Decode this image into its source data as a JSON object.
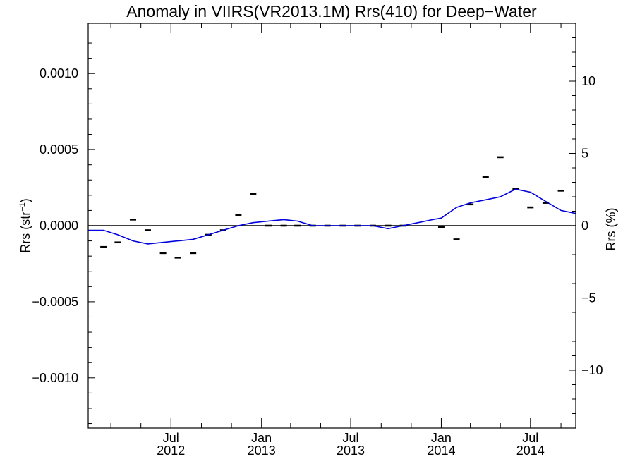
{
  "chart_data": {
    "type": "line",
    "title": "Anomaly in VIIRS(VR2013.1M) Rrs(410) for Deep−Water",
    "ylabel_left": {
      "base": "Rrs (str",
      "sup": "−1",
      "end": ")"
    },
    "ylabel_right": "Rrs (%)",
    "xlim": [
      "2012-01-15",
      "2014-10-01"
    ],
    "ylim": [
      -0.00133,
      0.00133
    ],
    "ylim_right": [
      -14,
      14
    ],
    "x_ticks": [
      {
        "date": "2012-07-01",
        "month": "Jul",
        "year": "2012"
      },
      {
        "date": "2013-01-01",
        "month": "Jan",
        "year": "2013"
      },
      {
        "date": "2013-07-01",
        "month": "Jul",
        "year": "2013"
      },
      {
        "date": "2014-01-01",
        "month": "Jan",
        "year": "2014"
      },
      {
        "date": "2014-07-01",
        "month": "Jul",
        "year": "2014"
      }
    ],
    "y_ticks_left": [
      {
        "value": 0.001,
        "label": "0.0010"
      },
      {
        "value": 0.0005,
        "label": "0.0005"
      },
      {
        "value": 0.0,
        "label": "0.0000"
      },
      {
        "value": -0.0005,
        "label": "−0.0005"
      },
      {
        "value": -0.001,
        "label": "−0.0010"
      }
    ],
    "y_ticks_right": [
      {
        "value": 10,
        "label": "10"
      },
      {
        "value": 5,
        "label": "5"
      },
      {
        "value": 0,
        "label": "0"
      },
      {
        "value": -5,
        "label": "−5"
      },
      {
        "value": -10,
        "label": "−10"
      }
    ],
    "zero_line": 0,
    "series": [
      {
        "style": "marker-dash",
        "color": "#000000",
        "points": [
          {
            "x": "2012-02-15",
            "y": -0.00014
          },
          {
            "x": "2012-03-15",
            "y": -0.00011
          },
          {
            "x": "2012-04-15",
            "y": 4e-05
          },
          {
            "x": "2012-05-15",
            "y": -3e-05
          },
          {
            "x": "2012-06-15",
            "y": -0.00018
          },
          {
            "x": "2012-07-15",
            "y": -0.00021
          },
          {
            "x": "2012-08-15",
            "y": -0.00018
          },
          {
            "x": "2012-09-15",
            "y": -6e-05
          },
          {
            "x": "2012-10-15",
            "y": -3e-05
          },
          {
            "x": "2012-11-15",
            "y": 7e-05
          },
          {
            "x": "2012-12-15",
            "y": 0.00021
          },
          {
            "x": "2013-01-15",
            "y": 0.0
          },
          {
            "x": "2013-02-15",
            "y": 0.0
          },
          {
            "x": "2013-03-15",
            "y": 0.0
          },
          {
            "x": "2013-04-15",
            "y": 0.0
          },
          {
            "x": "2013-05-15",
            "y": 0.0
          },
          {
            "x": "2013-06-15",
            "y": 0.0
          },
          {
            "x": "2013-07-15",
            "y": 0.0
          },
          {
            "x": "2013-08-15",
            "y": 0.0
          },
          {
            "x": "2013-09-15",
            "y": 0.0
          },
          {
            "x": "2013-10-15",
            "y": 0.0
          },
          {
            "x": "2014-01-01",
            "y": -1e-05
          },
          {
            "x": "2014-02-01",
            "y": -9e-05
          },
          {
            "x": "2014-03-01",
            "y": 0.00014
          },
          {
            "x": "2014-04-01",
            "y": 0.00032
          },
          {
            "x": "2014-05-01",
            "y": 0.00045
          },
          {
            "x": "2014-06-01",
            "y": 0.00024
          },
          {
            "x": "2014-07-01",
            "y": 0.00012
          },
          {
            "x": "2014-08-01",
            "y": 0.00015
          },
          {
            "x": "2014-09-01",
            "y": 0.00023
          }
        ]
      },
      {
        "style": "line",
        "color": "#0000dd",
        "points": [
          {
            "x": "2012-01-15",
            "y": -3e-05
          },
          {
            "x": "2012-02-15",
            "y": -3e-05
          },
          {
            "x": "2012-03-15",
            "y": -6e-05
          },
          {
            "x": "2012-04-15",
            "y": -0.0001
          },
          {
            "x": "2012-05-15",
            "y": -0.00012
          },
          {
            "x": "2012-06-15",
            "y": -0.00011
          },
          {
            "x": "2012-07-15",
            "y": -0.0001
          },
          {
            "x": "2012-08-15",
            "y": -9e-05
          },
          {
            "x": "2012-09-15",
            "y": -6e-05
          },
          {
            "x": "2012-10-15",
            "y": -3e-05
          },
          {
            "x": "2012-11-15",
            "y": 0.0
          },
          {
            "x": "2012-12-15",
            "y": 2e-05
          },
          {
            "x": "2013-01-15",
            "y": 3e-05
          },
          {
            "x": "2013-02-15",
            "y": 4e-05
          },
          {
            "x": "2013-03-15",
            "y": 3e-05
          },
          {
            "x": "2013-04-15",
            "y": 0.0
          },
          {
            "x": "2013-05-15",
            "y": 0.0
          },
          {
            "x": "2013-06-15",
            "y": 0.0
          },
          {
            "x": "2013-07-15",
            "y": 0.0
          },
          {
            "x": "2013-08-15",
            "y": 0.0
          },
          {
            "x": "2013-09-15",
            "y": -2e-05
          },
          {
            "x": "2013-10-15",
            "y": 0.0
          },
          {
            "x": "2013-11-15",
            "y": 2e-05
          },
          {
            "x": "2013-12-15",
            "y": 4e-05
          },
          {
            "x": "2014-01-01",
            "y": 5e-05
          },
          {
            "x": "2014-02-01",
            "y": 0.00012
          },
          {
            "x": "2014-03-01",
            "y": 0.00015
          },
          {
            "x": "2014-04-01",
            "y": 0.00017
          },
          {
            "x": "2014-05-01",
            "y": 0.00019
          },
          {
            "x": "2014-06-01",
            "y": 0.00024
          },
          {
            "x": "2014-07-01",
            "y": 0.00022
          },
          {
            "x": "2014-08-01",
            "y": 0.00016
          },
          {
            "x": "2014-09-01",
            "y": 0.0001
          },
          {
            "x": "2014-10-01",
            "y": 8e-05
          }
        ]
      }
    ]
  }
}
